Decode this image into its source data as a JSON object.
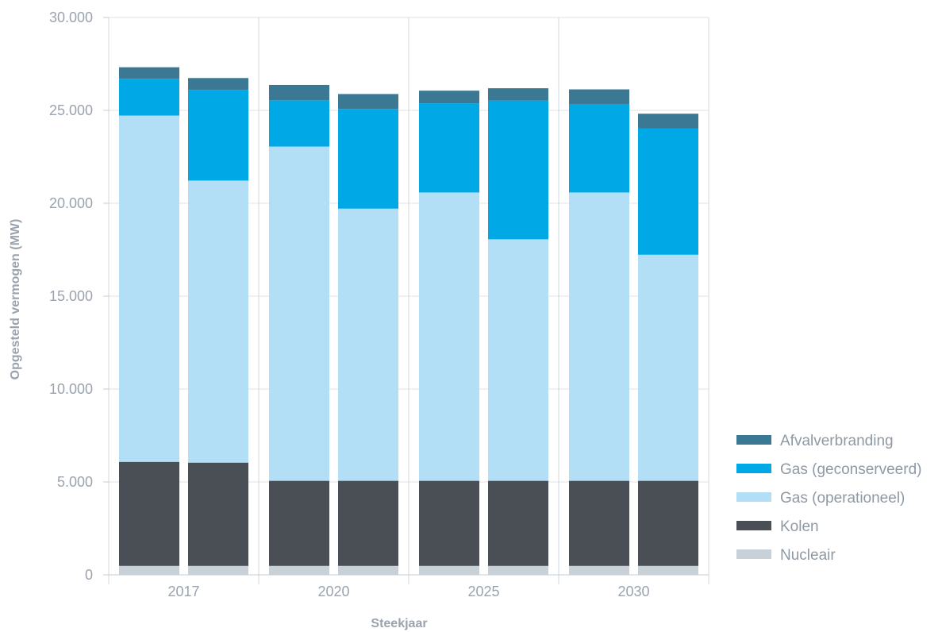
{
  "chart_data": {
    "type": "bar",
    "stacked": true,
    "ylabel": "Opgesteld vermogen (MW)",
    "xlabel": "Steekjaar",
    "ylim": [
      0,
      30000
    ],
    "yticks": [
      "0",
      "5.000",
      "10.000",
      "15.000",
      "20.000",
      "25.000",
      "30.000"
    ],
    "ytick_values": [
      0,
      5000,
      10000,
      15000,
      20000,
      25000,
      30000
    ],
    "groups": [
      "2017",
      "2020",
      "2025",
      "2030"
    ],
    "bars_per_group": 2,
    "grid": true,
    "legend_position": "right",
    "series": [
      {
        "name": "Nucleair",
        "color": "#c9d1d8",
        "values": [
          480,
          480,
          480,
          480,
          480,
          480,
          480,
          480
        ]
      },
      {
        "name": "Kolen",
        "color": "#4a4f55",
        "values": [
          5600,
          5560,
          4580,
          4580,
          4580,
          4580,
          4580,
          4580
        ]
      },
      {
        "name": "Gas (operationeel)",
        "color": "#b3dff6",
        "values": [
          18640,
          15180,
          17990,
          14650,
          15520,
          13000,
          15520,
          12170
        ]
      },
      {
        "name": "Gas (geconserveerd)",
        "color": "#00a9e6",
        "values": [
          1980,
          4880,
          2490,
          5370,
          4800,
          7470,
          4730,
          6790
        ]
      },
      {
        "name": "Afvalverbranding",
        "color": "#3a7894",
        "values": [
          620,
          640,
          830,
          800,
          680,
          660,
          820,
          800
        ]
      }
    ],
    "legend_order": [
      "Afvalverbranding",
      "Gas (geconserveerd)",
      "Gas (operationeel)",
      "Kolen",
      "Nucleair"
    ]
  }
}
